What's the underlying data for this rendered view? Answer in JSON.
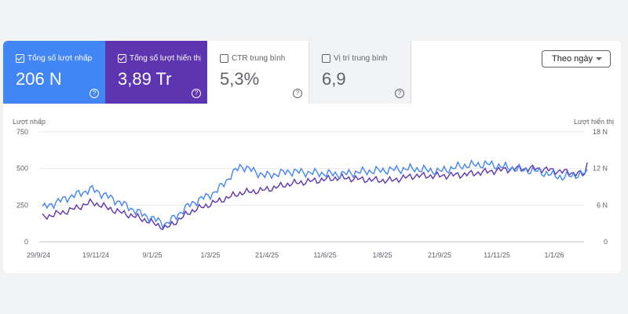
{
  "metrics": [
    {
      "label": "Tổng số lượt nhấp",
      "value": "206 N",
      "checked": true
    },
    {
      "label": "Tổng số lượt hiển thị",
      "value": "3,89 Tr",
      "checked": true
    },
    {
      "label": "CTR trung bình",
      "value": "5,3%",
      "checked": false
    },
    {
      "label": "Vị trí trung bình",
      "value": "6,9",
      "checked": false
    }
  ],
  "dropdown": {
    "label": "Theo ngày"
  },
  "colors": {
    "clicks": "#4285f4",
    "impressions": "#5e35b1"
  },
  "chart_data": {
    "type": "line",
    "left_axis_title": "Lượt nhấp",
    "right_axis_title": "Lượt hiển thị",
    "left_ticks": [
      "750",
      "500",
      "250",
      "0"
    ],
    "right_ticks": [
      "18 N",
      "12 N",
      "6 N",
      "0"
    ],
    "left_range": [
      0,
      750
    ],
    "right_range": [
      0,
      18000
    ],
    "x_labels": [
      "29/9/24",
      "19/11/24",
      "9/1/25",
      "1/3/25",
      "21/4/25",
      "11/6/25",
      "1/8/25",
      "21/9/25",
      "11/11/25",
      "1/1/26"
    ],
    "series": [
      {
        "name": "Lượt nhấp",
        "axis": "left",
        "anchors": [
          230,
          300,
          360,
          280,
          190,
          120,
          260,
          340,
          520,
          450,
          480,
          470,
          460,
          480,
          490,
          500,
          480,
          520,
          530,
          500,
          480,
          440,
          470
        ]
      },
      {
        "name": "Lượt hiển thị",
        "axis": "right",
        "anchors": [
          4000,
          5000,
          6500,
          5000,
          3800,
          2200,
          5000,
          6500,
          8000,
          8500,
          9500,
          10000,
          10500,
          10200,
          10000,
          10800,
          10800,
          11000,
          11500,
          12000,
          12000,
          11500,
          11000
        ]
      }
    ]
  }
}
